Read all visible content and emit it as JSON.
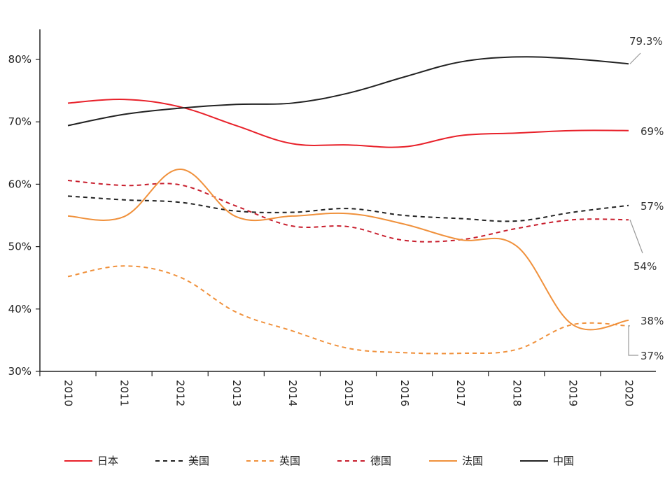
{
  "chart_data": {
    "type": "line",
    "title": "",
    "xlabel": "",
    "ylabel": "",
    "x": [
      "2010",
      "2011",
      "2012",
      "2013",
      "2014",
      "2015",
      "2016",
      "2017",
      "2018",
      "2019",
      "2020"
    ],
    "ylim": [
      30,
      85
    ],
    "yticks": [
      30,
      40,
      50,
      60,
      70,
      80
    ],
    "ytick_labels": [
      "30%",
      "40%",
      "50%",
      "60%",
      "70%",
      "80%"
    ],
    "legend_position": "bottom",
    "series": [
      {
        "name": "日本",
        "color": "#e8212a",
        "dash": "solid",
        "values": [
          73.0,
          73.6,
          72.4,
          69.4,
          66.5,
          66.3,
          66.0,
          67.8,
          68.2,
          68.6,
          68.6
        ]
      },
      {
        "name": "美国",
        "color": "#222222",
        "dash": "dashed",
        "values": [
          58.1,
          57.5,
          57.1,
          55.7,
          55.5,
          56.1,
          55.0,
          54.5,
          54.1,
          55.5,
          56.6
        ]
      },
      {
        "name": "英国",
        "color": "#f0913c",
        "dash": "dashed",
        "values": [
          45.2,
          46.9,
          45.1,
          39.5,
          36.5,
          33.7,
          33.0,
          32.9,
          33.5,
          37.5,
          37.3
        ]
      },
      {
        "name": "德国",
        "color": "#c81e2d",
        "dash": "dashed",
        "values": [
          60.6,
          59.8,
          59.9,
          56.5,
          53.3,
          53.2,
          51.0,
          51.1,
          52.9,
          54.3,
          54.3
        ]
      },
      {
        "name": "法国",
        "color": "#f0913c",
        "dash": "solid",
        "values": [
          54.9,
          54.8,
          62.4,
          54.8,
          54.9,
          55.3,
          53.6,
          51.1,
          50.1,
          37.5,
          38.2
        ]
      },
      {
        "name": "中国",
        "color": "#222222",
        "dash": "solid",
        "values": [
          69.4,
          71.2,
          72.2,
          72.8,
          73.0,
          74.6,
          77.2,
          79.6,
          80.4,
          80.1,
          79.3
        ]
      }
    ],
    "annotations": [
      {
        "text": "79.3%",
        "series": "中国"
      },
      {
        "text": "69%",
        "series": "日本"
      },
      {
        "text": "57%",
        "series": "美国"
      },
      {
        "text": "54%",
        "series": "德国"
      },
      {
        "text": "38%",
        "series": "法国"
      },
      {
        "text": "37%",
        "series": "英国"
      }
    ],
    "legend_order": [
      "日本",
      "美国",
      "英国",
      "德国",
      "法国",
      "中国"
    ]
  }
}
